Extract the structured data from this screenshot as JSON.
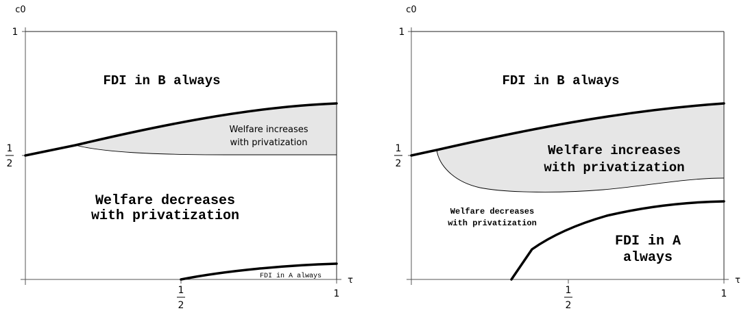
{
  "left": {
    "y_axis_label": "c0",
    "x_axis_label": "τ",
    "tick_one_y": "1",
    "tick_half_y_num": "1",
    "tick_half_y_den": "2",
    "tick_half_x_num": "1",
    "tick_half_x_den": "2",
    "tick_one_x": "1",
    "region_fdi_b": "FDI in B always",
    "region_increase_l1": "Welfare increases",
    "region_increase_l2": "with privatization",
    "region_decrease_l1": "Welfare decreases",
    "region_decrease_l2": "with privatization",
    "region_fdi_a": "FDI in A always"
  },
  "right": {
    "y_axis_label": "c0",
    "x_axis_label": "τ",
    "tick_one_y": "1",
    "tick_half_y_num": "1",
    "tick_half_y_den": "2",
    "tick_half_x_num": "1",
    "tick_half_x_den": "2",
    "tick_one_x": "1",
    "region_fdi_b": "FDI in B always",
    "region_increase_l1": "Welfare increases",
    "region_increase_l2": "with privatization",
    "region_decrease_l1": "Welfare decreases",
    "region_decrease_l2": "with privatization",
    "region_fdi_a_l1": "FDI in A",
    "region_fdi_a_l2": "always"
  },
  "colors": {
    "shaded_region": "#e6e6e6",
    "boundary": "#000000"
  }
}
